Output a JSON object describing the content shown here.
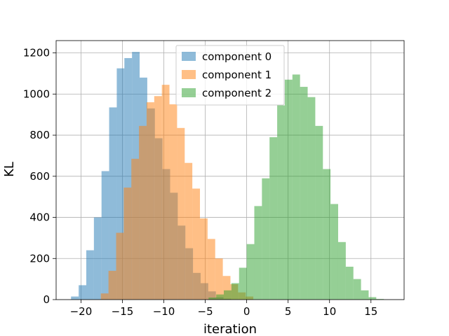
{
  "chart_data": {
    "type": "histogram",
    "xlabel": "iteration",
    "ylabel": "KL",
    "xlim": [
      -23,
      19
    ],
    "ylim": [
      0,
      1260
    ],
    "xticks": [
      -20,
      -15,
      -10,
      -5,
      0,
      5,
      10,
      15
    ],
    "yticks": [
      0,
      200,
      400,
      600,
      800,
      1000,
      1200
    ],
    "grid": true,
    "legend_position": "top-center",
    "series": [
      {
        "name": "component 0",
        "color": "#1f77b4",
        "alpha": 0.5,
        "bin_start": -21.2,
        "bin_width": 0.92,
        "counts": [
          15,
          70,
          240,
          400,
          625,
          935,
          1125,
          1175,
          1205,
          1080,
          930,
          785,
          635,
          520,
          360,
          250,
          130,
          80,
          40,
          12,
          4
        ]
      },
      {
        "name": "component 1",
        "color": "#ff7f0e",
        "alpha": 0.5,
        "bin_start": -17.6,
        "bin_width": 0.92,
        "counts": [
          30,
          140,
          325,
          545,
          685,
          845,
          960,
          990,
          1045,
          950,
          835,
          665,
          540,
          395,
          295,
          200,
          115,
          75,
          35,
          15
        ]
      },
      {
        "name": "component 2",
        "color": "#2ca02c",
        "alpha": 0.5,
        "bin_start": -4.6,
        "bin_width": 0.92,
        "counts": [
          10,
          25,
          45,
          80,
          155,
          270,
          455,
          590,
          790,
          945,
          1070,
          1095,
          1035,
          985,
          845,
          635,
          465,
          280,
          160,
          100,
          45,
          12,
          3
        ]
      }
    ]
  }
}
